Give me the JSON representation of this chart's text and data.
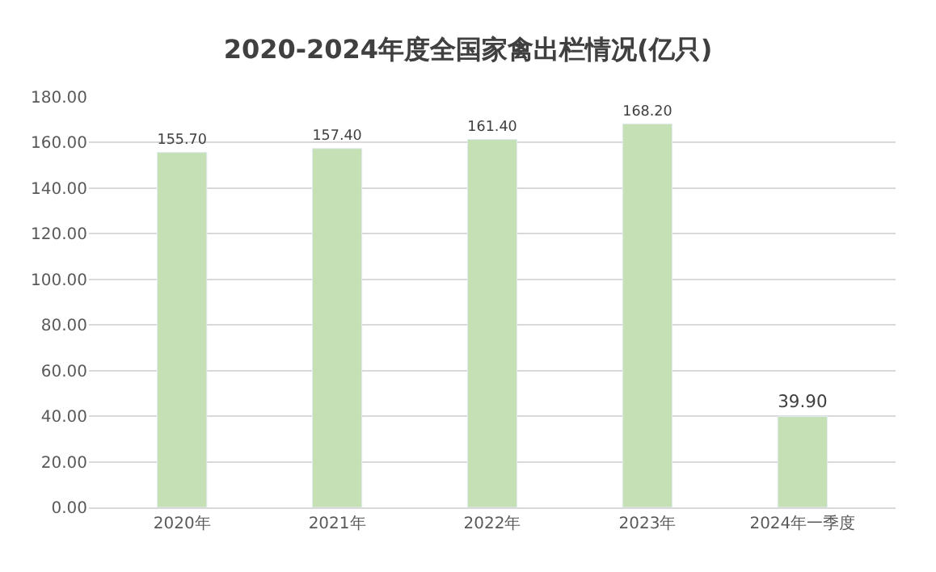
{
  "chart_data": {
    "type": "bar",
    "title": "2020-2024年度全国家禽出栏情况(亿只)",
    "categories": [
      "2020年",
      "2021年",
      "2022年",
      "2023年",
      "2024年一季度"
    ],
    "values": [
      155.7,
      157.4,
      161.4,
      168.2,
      39.9
    ],
    "value_labels": [
      "155.70",
      "157.40",
      "161.40",
      "168.20",
      "39.90"
    ],
    "color": "#c5e0b4",
    "ylim": [
      0,
      180
    ],
    "yticks": [
      {
        "value": 0,
        "label": "0.00"
      },
      {
        "value": 20,
        "label": "20.00"
      },
      {
        "value": 40,
        "label": "40.00"
      },
      {
        "value": 60,
        "label": "60.00"
      },
      {
        "value": 80,
        "label": "80.00"
      },
      {
        "value": 100,
        "label": "100.00"
      },
      {
        "value": 120,
        "label": "120.00"
      },
      {
        "value": 140,
        "label": "140.00"
      },
      {
        "value": 160,
        "label": "160.00"
      },
      {
        "value": 180,
        "label": "180.00"
      }
    ],
    "grid": "y"
  }
}
